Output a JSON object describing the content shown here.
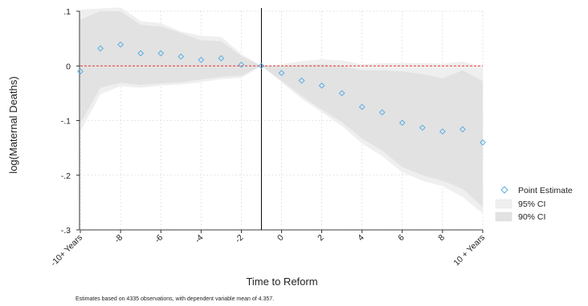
{
  "chart_data": {
    "type": "scatter",
    "title": "",
    "xlabel": "Time to Reform",
    "ylabel": "log(Maternal Deaths)",
    "xlim": [
      -10,
      10
    ],
    "ylim": [
      -0.3,
      0.1
    ],
    "grid": true,
    "legend_position": "right",
    "reference_lines": {
      "vertical_x": -1,
      "horizontal_y": 0
    },
    "x_ticks": [
      {
        "value": -10,
        "label": "-10+ Years"
      },
      {
        "value": -8,
        "label": "-8"
      },
      {
        "value": -6,
        "label": "-6"
      },
      {
        "value": -4,
        "label": "-4"
      },
      {
        "value": -2,
        "label": "-2"
      },
      {
        "value": 0,
        "label": "0"
      },
      {
        "value": 2,
        "label": "2"
      },
      {
        "value": 4,
        "label": "4"
      },
      {
        "value": 6,
        "label": "6"
      },
      {
        "value": 8,
        "label": "8"
      },
      {
        "value": 10,
        "label": "10 + Years"
      }
    ],
    "y_ticks": [
      {
        "value": 0.1,
        "label": ".1"
      },
      {
        "value": 0,
        "label": "0"
      },
      {
        "value": -0.1,
        "label": "-.1"
      },
      {
        "value": -0.2,
        "label": "-.2"
      },
      {
        "value": -0.3,
        "label": "-.3"
      }
    ],
    "x": [
      -10,
      -9,
      -8,
      -7,
      -6,
      -5,
      -4,
      -3,
      -2,
      -1,
      0,
      1,
      2,
      3,
      4,
      5,
      6,
      7,
      8,
      9,
      10
    ],
    "series": [
      {
        "name": "Point Estimate",
        "role": "point",
        "values": [
          -0.01,
          0.032,
          0.039,
          0.023,
          0.023,
          0.017,
          0.011,
          0.014,
          0.002,
          0.0,
          -0.013,
          -0.027,
          -0.036,
          -0.05,
          -0.075,
          -0.085,
          -0.104,
          -0.113,
          -0.12,
          -0.116,
          -0.14
        ]
      },
      {
        "name": "95% CI",
        "role": "band",
        "lower": [
          -0.12,
          -0.052,
          -0.037,
          -0.04,
          -0.036,
          -0.034,
          -0.03,
          -0.024,
          -0.022,
          0.0,
          -0.03,
          -0.06,
          -0.085,
          -0.11,
          -0.142,
          -0.165,
          -0.195,
          -0.21,
          -0.22,
          -0.24,
          -0.27
        ],
        "upper": [
          0.103,
          0.105,
          0.107,
          0.082,
          0.078,
          0.063,
          0.055,
          0.053,
          0.022,
          0.0,
          0.003,
          0.009,
          0.012,
          0.01,
          0.003,
          0.005,
          0.005,
          0.005,
          0.004,
          0.008,
          -0.002
        ]
      },
      {
        "name": "90% CI",
        "role": "band",
        "lower": [
          -0.105,
          -0.04,
          -0.031,
          -0.035,
          -0.032,
          -0.03,
          -0.025,
          -0.02,
          -0.018,
          0.0,
          -0.027,
          -0.055,
          -0.08,
          -0.103,
          -0.133,
          -0.155,
          -0.185,
          -0.2,
          -0.21,
          -0.225,
          -0.258
        ],
        "upper": [
          0.085,
          0.1,
          0.1,
          0.075,
          0.072,
          0.06,
          0.047,
          0.045,
          0.018,
          0.0,
          -0.001,
          0.002,
          0.003,
          0.0,
          -0.008,
          -0.008,
          -0.01,
          -0.015,
          -0.023,
          -0.008,
          -0.028
        ]
      }
    ],
    "colors": {
      "point": "#5aaee3",
      "ci95": "#efefef",
      "ci90": "#e2e2e2",
      "zero_line": "#e8302e",
      "event_line": "#000000",
      "grid": "#d3d3d3"
    },
    "footnote": "Estimates based on 4335 observations, with dependent variable mean of 4.357."
  }
}
